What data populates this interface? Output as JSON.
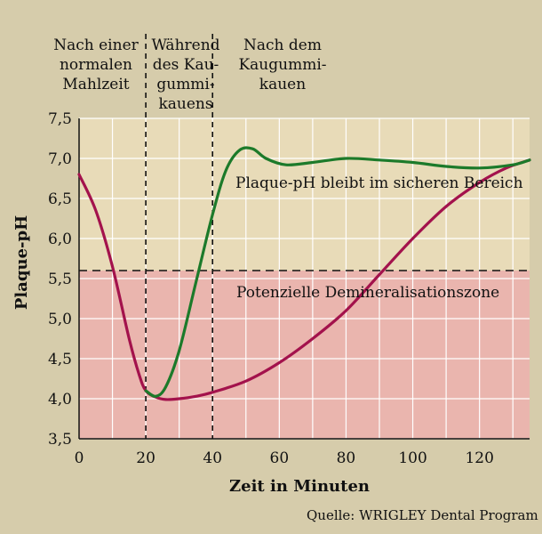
{
  "chart_data": {
    "type": "line",
    "xlabel": "Zeit in Minuten",
    "ylabel": "Plaque-pH",
    "xlim": [
      0,
      135
    ],
    "ylim": [
      3.5,
      7.5
    ],
    "xticks": [
      "0",
      "20",
      "40",
      "60",
      "80",
      "100",
      "120"
    ],
    "yticks": [
      "3,5",
      "4,0",
      "4,5",
      "5,0",
      "5,5",
      "6,0",
      "6,5",
      "7,0",
      "7,5"
    ],
    "grid": true,
    "threshold": 5.6,
    "phases": [
      {
        "lines": [
          "Nach einer",
          "normalen",
          "Mahlzeit"
        ]
      },
      {
        "lines": [
          "Während",
          "des Kau-",
          "gummi-",
          "kauens"
        ]
      },
      {
        "lines": [
          "Nach dem",
          "Kaugummi-",
          "kauen"
        ]
      }
    ],
    "phase_boundaries": [
      20,
      40
    ],
    "zones": {
      "safe": "Plaque-pH bleibt im sicheren Bereich",
      "danger": "Potenzielle Demineralisationszone"
    },
    "source": "Quelle: WRIGLEY Dental Program",
    "series": [
      {
        "color": "#a3124c",
        "x": [
          0,
          5,
          10,
          15,
          18,
          20,
          23,
          26,
          30,
          35,
          40,
          50,
          60,
          70,
          80,
          90,
          100,
          110,
          120,
          128,
          135
        ],
        "y": [
          6.8,
          6.35,
          5.65,
          4.75,
          4.3,
          4.1,
          4.02,
          3.99,
          4.0,
          4.03,
          4.08,
          4.22,
          4.45,
          4.75,
          5.1,
          5.55,
          6.0,
          6.4,
          6.7,
          6.88,
          6.98
        ]
      },
      {
        "color": "#1c7a2a",
        "x": [
          20,
          23,
          26,
          30,
          35,
          40,
          44,
          48,
          52,
          56,
          62,
          70,
          80,
          90,
          100,
          110,
          120,
          130,
          135
        ],
        "y": [
          4.1,
          4.03,
          4.15,
          4.6,
          5.45,
          6.3,
          6.85,
          7.1,
          7.12,
          7.0,
          6.92,
          6.95,
          7.0,
          6.98,
          6.95,
          6.9,
          6.88,
          6.92,
          6.98
        ]
      }
    ]
  },
  "colors": {
    "background": "#d6ccab",
    "safe_zone": "#e8dbb8",
    "danger_zone": "#eab5ae",
    "grid": "#ffffff"
  }
}
